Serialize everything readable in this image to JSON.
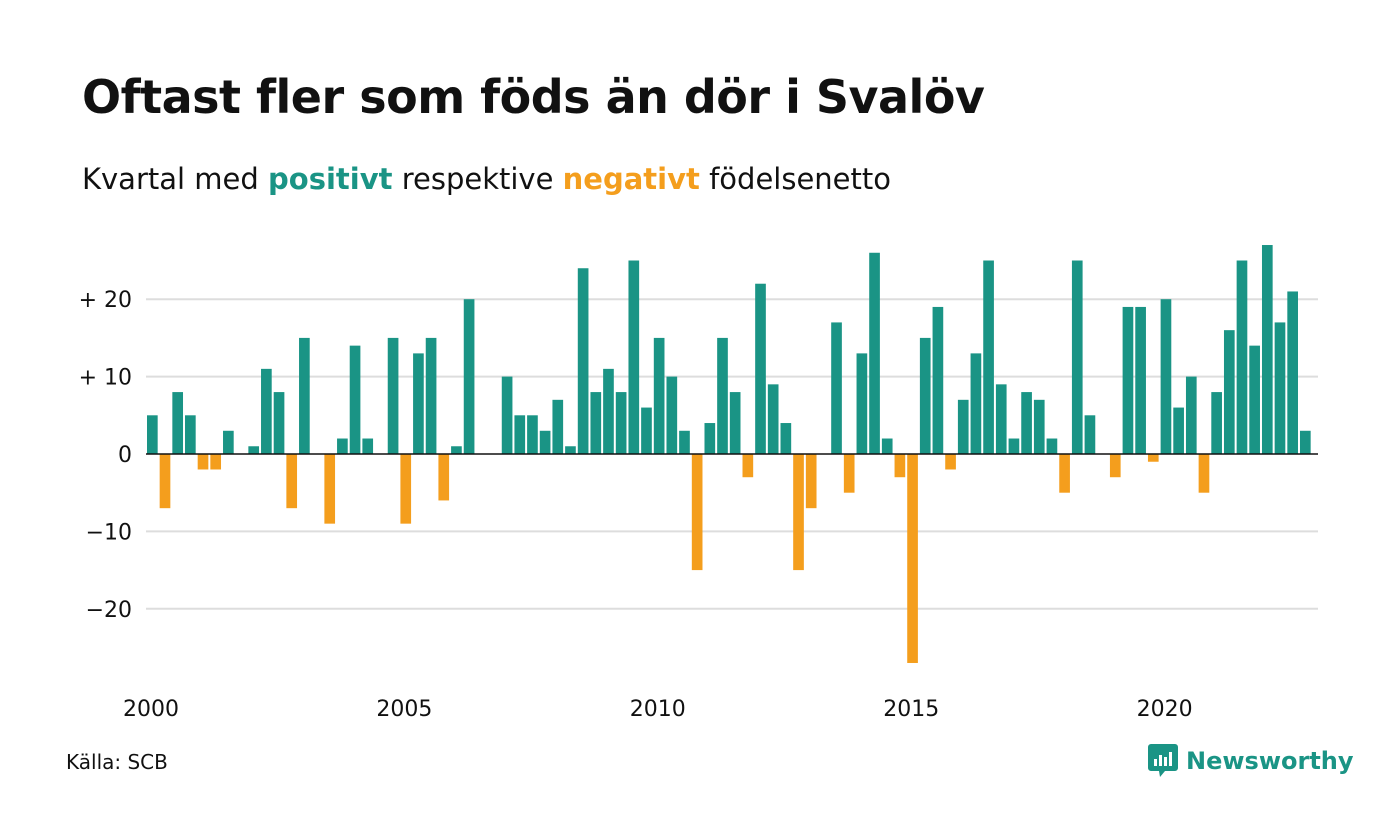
{
  "title": "Oftast fler som föds än dör i Svalöv",
  "subtitle": {
    "prefix": "Kvartal med ",
    "positive_word": "positivt",
    "middle": " respektive ",
    "negative_word": "negativt",
    "suffix": " födelsenetto"
  },
  "source": "Källa: SCB",
  "brand": {
    "name": "Newsworthy",
    "icon": "newsworthy-logo-icon"
  },
  "colors": {
    "positive": "#1a9485",
    "negative": "#f49e1d",
    "grid": "#dddddd",
    "axis": "#111111"
  },
  "chart_data": {
    "type": "bar",
    "x_start_year": 2000,
    "quarters_per_year": 4,
    "xlim": [
      2000.0,
      2023.75
    ],
    "ylim": [
      -28,
      28
    ],
    "x_ticks": [
      {
        "value": 2000,
        "label": "2000"
      },
      {
        "value": 2005,
        "label": "2005"
      },
      {
        "value": 2010,
        "label": "2010"
      },
      {
        "value": 2015,
        "label": "2015"
      },
      {
        "value": 2020,
        "label": "2020"
      }
    ],
    "y_ticks": [
      {
        "value": 20,
        "label": "+ 20"
      },
      {
        "value": 10,
        "label": "+ 10"
      },
      {
        "value": 0,
        "label": "0"
      },
      {
        "value": -10,
        "label": "−10"
      },
      {
        "value": -20,
        "label": "−20"
      }
    ],
    "grid": true,
    "values": [
      5,
      -7,
      8,
      5,
      -2,
      -2,
      3,
      0,
      1,
      11,
      8,
      -7,
      15,
      0,
      -9,
      2,
      14,
      2,
      0,
      15,
      -9,
      13,
      15,
      -6,
      1,
      20,
      0,
      0,
      10,
      5,
      5,
      3,
      7,
      1,
      24,
      8,
      11,
      8,
      25,
      6,
      15,
      10,
      3,
      -15,
      4,
      15,
      8,
      -3,
      22,
      9,
      4,
      -15,
      -7,
      0,
      17,
      -5,
      13,
      26,
      2,
      -3,
      -27,
      15,
      19,
      -2,
      7,
      13,
      25,
      9,
      2,
      8,
      7,
      2,
      -5,
      25,
      5,
      0,
      -3,
      19,
      19,
      -1,
      20,
      6,
      10,
      -5,
      8,
      16,
      25,
      14,
      27,
      17,
      21,
      3
    ]
  }
}
